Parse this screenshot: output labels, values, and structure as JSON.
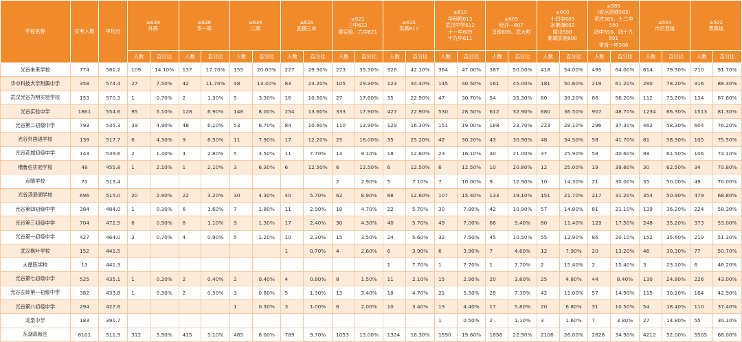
{
  "headers": {
    "school": "学校名称",
    "examinees": "实考人数",
    "average": "平均分",
    "sub_count": "人数",
    "sub_pct": "百分比"
  },
  "groups": [
    {
      "lines": [
        "≥639",
        "外高"
      ]
    },
    {
      "lines": [
        "≥636",
        "华一高"
      ]
    },
    {
      "lines": [
        "≥634",
        "二高"
      ]
    },
    {
      "lines": [
        "≥626",
        "武钢三中"
      ]
    },
    {
      "lines": [
        "≥621",
        "三中622",
        "睿实验、六中621"
      ]
    },
    {
      "lines": [
        "≥615",
        "洪高617"
      ]
    },
    {
      "lines": [
        "≥610",
        "华科附613",
        "武汉中学612",
        "十一中609",
        "十九中611"
      ]
    },
    {
      "lines": [
        "≥605",
        "经开—607",
        "汉铁605、武大附"
      ]
    },
    {
      "lines": [
        "≥600",
        "十四中603",
        "水果湖602",
        "睛川598",
        "新城实验600"
      ]
    },
    {
      "lines": [
        "≥585",
        "(省示范线583)",
        "育才585、十二中",
        "590",
        "四中590、四十九",
        "591",
        "常青一中588"
      ]
    },
    {
      "lines": [
        "≥554",
        "市示范线"
      ]
    },
    {
      "lines": [
        "≥502",
        "普高线"
      ]
    }
  ],
  "rows": [
    {
      "school": "光谷未来学校",
      "n": "774",
      "avg": "581.2",
      "c": [
        [
          "109",
          "14.10%"
        ],
        [
          "137",
          "17.70%"
        ],
        [
          "155",
          "20.00%"
        ],
        [
          "227",
          "29.30%"
        ],
        [
          "273",
          "35.30%"
        ],
        [
          "326",
          "42.10%"
        ],
        [
          "364",
          "47.00%"
        ],
        [
          "387",
          "50.00%"
        ],
        [
          "418",
          "54.00%"
        ],
        [
          "495",
          "64.00%"
        ],
        [
          "614",
          "79.30%"
        ],
        [
          "710",
          "91.70%"
        ]
      ]
    },
    {
      "school": "华中科技大学附属中学",
      "n": "358",
      "avg": "574.4",
      "c": [
        [
          "27",
          "7.50%"
        ],
        [
          "42",
          "11.70%"
        ],
        [
          "48",
          "13.40%"
        ],
        [
          "83",
          "23.20%"
        ],
        [
          "105",
          "29.30%"
        ],
        [
          "123",
          "34.40%"
        ],
        [
          "145",
          "40.50%"
        ],
        [
          "161",
          "45.00%"
        ],
        [
          "181",
          "50.60%"
        ],
        [
          "219",
          "61.20%"
        ],
        [
          "280",
          "78.20%"
        ],
        [
          "316",
          "88.30%"
        ]
      ]
    },
    {
      "school": "武汉光谷为明实验学校",
      "n": "153",
      "avg": "570.3",
      "c": [
        [
          "1",
          "0.70%"
        ],
        [
          "2",
          "1.30%"
        ],
        [
          "5",
          "3.30%"
        ],
        [
          "16",
          "10.50%"
        ],
        [
          "27",
          "17.60%"
        ],
        [
          "35",
          "22.90%"
        ],
        [
          "47",
          "30.70%"
        ],
        [
          "54",
          "35.30%"
        ],
        [
          "60",
          "39.20%"
        ],
        [
          "86",
          "56.20%"
        ],
        [
          "112",
          "73.20%"
        ],
        [
          "134",
          "87.60%"
        ]
      ]
    },
    {
      "school": "光谷实验中学",
      "n": "1861",
      "avg": "554.6",
      "c": [
        [
          "95",
          "5.10%"
        ],
        [
          "128",
          "6.90%"
        ],
        [
          "148",
          "8.00%"
        ],
        [
          "254",
          "13.60%"
        ],
        [
          "333",
          "17.90%"
        ],
        [
          "427",
          "22.90%"
        ],
        [
          "530",
          "28.50%"
        ],
        [
          "612",
          "32.90%"
        ],
        [
          "680",
          "36.50%"
        ],
        [
          "907",
          "48.70%"
        ],
        [
          "1234",
          "66.30%"
        ],
        [
          "1513",
          "81.30%"
        ]
      ]
    },
    {
      "school": "光谷第二初级中学",
      "n": "793",
      "avg": "535.3",
      "c": [
        [
          "39",
          "4.90%"
        ],
        [
          "48",
          "6.10%"
        ],
        [
          "53",
          "6.70%"
        ],
        [
          "84",
          "10.60%"
        ],
        [
          "110",
          "13.90%"
        ],
        [
          "129",
          "16.30%"
        ],
        [
          "151",
          "19.00%"
        ],
        [
          "188",
          "23.70%"
        ],
        [
          "223",
          "28.10%"
        ],
        [
          "296",
          "37.30%"
        ],
        [
          "462",
          "58.30%"
        ],
        [
          "604",
          "76.20%"
        ]
      ]
    },
    {
      "school": "光谷外国语学校",
      "n": "139",
      "avg": "517.7",
      "c": [
        [
          "6",
          "4.30%"
        ],
        [
          "9",
          "6.50%"
        ],
        [
          "11",
          "7.90%"
        ],
        [
          "17",
          "12.20%"
        ],
        [
          "25",
          "18.00%"
        ],
        [
          "35",
          "25.20%"
        ],
        [
          "42",
          "30.20%"
        ],
        [
          "43",
          "30.90%"
        ],
        [
          "48",
          "34.50%"
        ],
        [
          "58",
          "41.70%"
        ],
        [
          "81",
          "58.30%"
        ],
        [
          "105",
          "75.50%"
        ]
      ]
    },
    {
      "school": "光谷花城初级中学",
      "n": "143",
      "avg": "539.6",
      "c": [
        [
          "2",
          "1.40%"
        ],
        [
          "4",
          "2.80%"
        ],
        [
          "5",
          "3.50%"
        ],
        [
          "11",
          "7.70%"
        ],
        [
          "13",
          "9.10%"
        ],
        [
          "18",
          "12.60%"
        ],
        [
          "23",
          "16.10%"
        ],
        [
          "30",
          "21.00%"
        ],
        [
          "37",
          "25.90%"
        ],
        [
          "58",
          "40.60%"
        ],
        [
          "88",
          "61.50%"
        ],
        [
          "106",
          "74.10%"
        ]
      ]
    },
    {
      "school": "楷鲁伯实验学校",
      "n": "48",
      "avg": "455.8",
      "c": [
        [
          "1",
          "2.10%"
        ],
        [
          "1",
          "2.10%"
        ],
        [
          "3",
          "6.30%"
        ],
        [
          "6",
          "12.50%"
        ],
        [
          "6",
          "12.50%"
        ],
        [
          "6",
          "12.50%"
        ],
        [
          "6",
          "12.50%"
        ],
        [
          "10",
          "20.80%"
        ],
        [
          "12",
          "25.00%"
        ],
        [
          "19",
          "39.60%"
        ],
        [
          "30",
          "62.50%"
        ],
        [
          "34",
          "70.80%"
        ]
      ]
    },
    {
      "school": "点睛学校",
      "n": "70",
      "avg": "513.4",
      "c": [
        [
          "",
          ""
        ],
        [
          "",
          ""
        ],
        [
          "",
          ""
        ],
        [
          "",
          ""
        ],
        [
          "2",
          "2.90%"
        ],
        [
          "5",
          "7.10%"
        ],
        [
          "7",
          "10.00%"
        ],
        [
          "9",
          "12.90%"
        ],
        [
          "10",
          "14.30%"
        ],
        [
          "21",
          "30.00%"
        ],
        [
          "35",
          "50.00%"
        ],
        [
          "49",
          "70.00%"
        ]
      ]
    },
    {
      "school": "光谷汤逊湖学校",
      "n": "696",
      "avg": "515.0",
      "c": [
        [
          "20",
          "2.90%"
        ],
        [
          "22",
          "3.20%"
        ],
        [
          "30",
          "4.30%"
        ],
        [
          "40",
          "5.70%"
        ],
        [
          "62",
          "8.90%"
        ],
        [
          "88",
          "12.60%"
        ],
        [
          "107",
          "15.40%"
        ],
        [
          "133",
          "19.10%"
        ],
        [
          "151",
          "21.70%"
        ],
        [
          "217",
          "31.20%"
        ],
        [
          "354",
          "50.90%"
        ],
        [
          "479",
          "68.80%"
        ]
      ]
    },
    {
      "school": "光谷第四初级中学",
      "n": "384",
      "avg": "484.0",
      "c": [
        [
          "1",
          "0.30%"
        ],
        [
          "6",
          "1.60%"
        ],
        [
          "7",
          "1.80%"
        ],
        [
          "11",
          "2.90%"
        ],
        [
          "18",
          "4.70%"
        ],
        [
          "22",
          "5.70%"
        ],
        [
          "30",
          "7.80%"
        ],
        [
          "42",
          "10.90%"
        ],
        [
          "57",
          "14.80%"
        ],
        [
          "81",
          "21.10%"
        ],
        [
          "139",
          "36.20%"
        ],
        [
          "224",
          "58.30%"
        ]
      ]
    },
    {
      "school": "光谷第三初级中学",
      "n": "704",
      "avg": "472.5",
      "c": [
        [
          "6",
          "0.90%"
        ],
        [
          "8",
          "1.10%"
        ],
        [
          "9",
          "1.30%"
        ],
        [
          "17",
          "2.40%"
        ],
        [
          "30",
          "4.30%"
        ],
        [
          "40",
          "5.70%"
        ],
        [
          "49",
          "7.00%"
        ],
        [
          "66",
          "9.40%"
        ],
        [
          "80",
          "11.40%"
        ],
        [
          "123",
          "17.50%"
        ],
        [
          "248",
          "35.20%"
        ],
        [
          "373",
          "53.00%"
        ]
      ]
    },
    {
      "school": "光谷第一初级中学",
      "n": "427",
      "avg": "464.0",
      "c": [
        [
          "3",
          "0.70%"
        ],
        [
          "4",
          "0.90%"
        ],
        [
          "5",
          "1.20%"
        ],
        [
          "10",
          "2.30%"
        ],
        [
          "15",
          "3.50%"
        ],
        [
          "24",
          "5.60%"
        ],
        [
          "32",
          "7.50%"
        ],
        [
          "45",
          "10.50%"
        ],
        [
          "55",
          "12.90%"
        ],
        [
          "86",
          "20.10%"
        ],
        [
          "152",
          "35.60%"
        ],
        [
          "219",
          "51.30%"
        ]
      ]
    },
    {
      "school": "武汉枫叶学校",
      "n": "152",
      "avg": "441.5",
      "c": [
        [
          "",
          ""
        ],
        [
          "",
          ""
        ],
        [
          "",
          ""
        ],
        [
          "1",
          "0.70%"
        ],
        [
          "4",
          "2.60%"
        ],
        [
          "6",
          "3.90%"
        ],
        [
          "6",
          "3.90%"
        ],
        [
          "7",
          "4.60%"
        ],
        [
          "12",
          "7.90%"
        ],
        [
          "20",
          "13.20%"
        ],
        [
          "46",
          "30.30%"
        ],
        [
          "77",
          "50.70%"
        ]
      ]
    },
    {
      "school": "大屋陈学校",
      "n": "13",
      "avg": "441.3",
      "c": [
        [
          "",
          ""
        ],
        [
          "",
          ""
        ],
        [
          "",
          ""
        ],
        [
          "",
          ""
        ],
        [
          "",
          ""
        ],
        [
          "1",
          "7.70%"
        ],
        [
          "1",
          "7.70%"
        ],
        [
          "1",
          "7.70%"
        ],
        [
          "2",
          "15.40%"
        ],
        [
          "2",
          "15.40%"
        ],
        [
          "3",
          "23.10%"
        ],
        [
          "6",
          "46.20%"
        ]
      ]
    },
    {
      "school": "光谷第七初级中学",
      "n": "525",
      "avg": "435.1",
      "c": [
        [
          "1",
          "0.20%"
        ],
        [
          "2",
          "0.40%"
        ],
        [
          "2",
          "0.40%"
        ],
        [
          "4",
          "0.80%"
        ],
        [
          "8",
          "1.50%"
        ],
        [
          "11",
          "2.10%"
        ],
        [
          "15",
          "2.90%"
        ],
        [
          "20",
          "3.80%"
        ],
        [
          "25",
          "4.80%"
        ],
        [
          "44",
          "8.40%"
        ],
        [
          "130",
          "24.80%"
        ],
        [
          "226",
          "43.00%"
        ]
      ]
    },
    {
      "school": "光谷左岭第一初级中学",
      "n": "382",
      "avg": "433.8",
      "c": [
        [
          "1",
          "0.30%"
        ],
        [
          "2",
          "0.50%"
        ],
        [
          "3",
          "0.80%"
        ],
        [
          "5",
          "1.30%"
        ],
        [
          "13",
          "3.40%"
        ],
        [
          "18",
          "4.70%"
        ],
        [
          "21",
          "5.50%"
        ],
        [
          "28",
          "7.30%"
        ],
        [
          "42",
          "11.00%"
        ],
        [
          "57",
          "14.90%"
        ],
        [
          "115",
          "30.10%"
        ],
        [
          "164",
          "42.90%"
        ]
      ]
    },
    {
      "school": "光谷第八初级中学",
      "n": "294",
      "avg": "427.6",
      "c": [
        [
          "",
          ""
        ],
        [
          "",
          ""
        ],
        [
          "1",
          "0.30%"
        ],
        [
          "3",
          "1.00%"
        ],
        [
          "6",
          "2.00%"
        ],
        [
          "10",
          "3.40%"
        ],
        [
          "13",
          "4.40%"
        ],
        [
          "17",
          "5.80%"
        ],
        [
          "20",
          "6.80%"
        ],
        [
          "31",
          "10.50%"
        ],
        [
          "54",
          "18.40%"
        ],
        [
          "110",
          "37.40%"
        ]
      ]
    },
    {
      "school": "龙泉中学",
      "n": "183",
      "avg": "391.7",
      "c": [
        [
          "",
          ""
        ],
        [
          "",
          ""
        ],
        [
          "",
          ""
        ],
        [
          "",
          ""
        ],
        [
          "",
          ""
        ],
        [
          "",
          ""
        ],
        [
          "1",
          "0.50%"
        ],
        [
          "2",
          "1.10%"
        ],
        [
          "3",
          "1.60%"
        ],
        [
          "7",
          "3.80%"
        ],
        [
          "27",
          "14.80%"
        ],
        [
          "55",
          "30.10%"
        ]
      ]
    }
  ],
  "total": {
    "school": "东湖高新区",
    "n": "8101",
    "avg": "511.9",
    "c": [
      [
        "312",
        "3.90%"
      ],
      [
        "415",
        "5.10%"
      ],
      [
        "485",
        "6.00%"
      ],
      [
        "789",
        "9.70%"
      ],
      [
        "1053",
        "13.00%"
      ],
      [
        "1324",
        "16.30%"
      ],
      [
        "1590",
        "19.60%"
      ],
      [
        "1856",
        "22.90%"
      ],
      [
        "2106",
        "26.00%"
      ],
      [
        "2828",
        "34.90%"
      ],
      [
        "4212",
        "52.00%"
      ],
      [
        "5505",
        "68.00%"
      ]
    ]
  }
}
